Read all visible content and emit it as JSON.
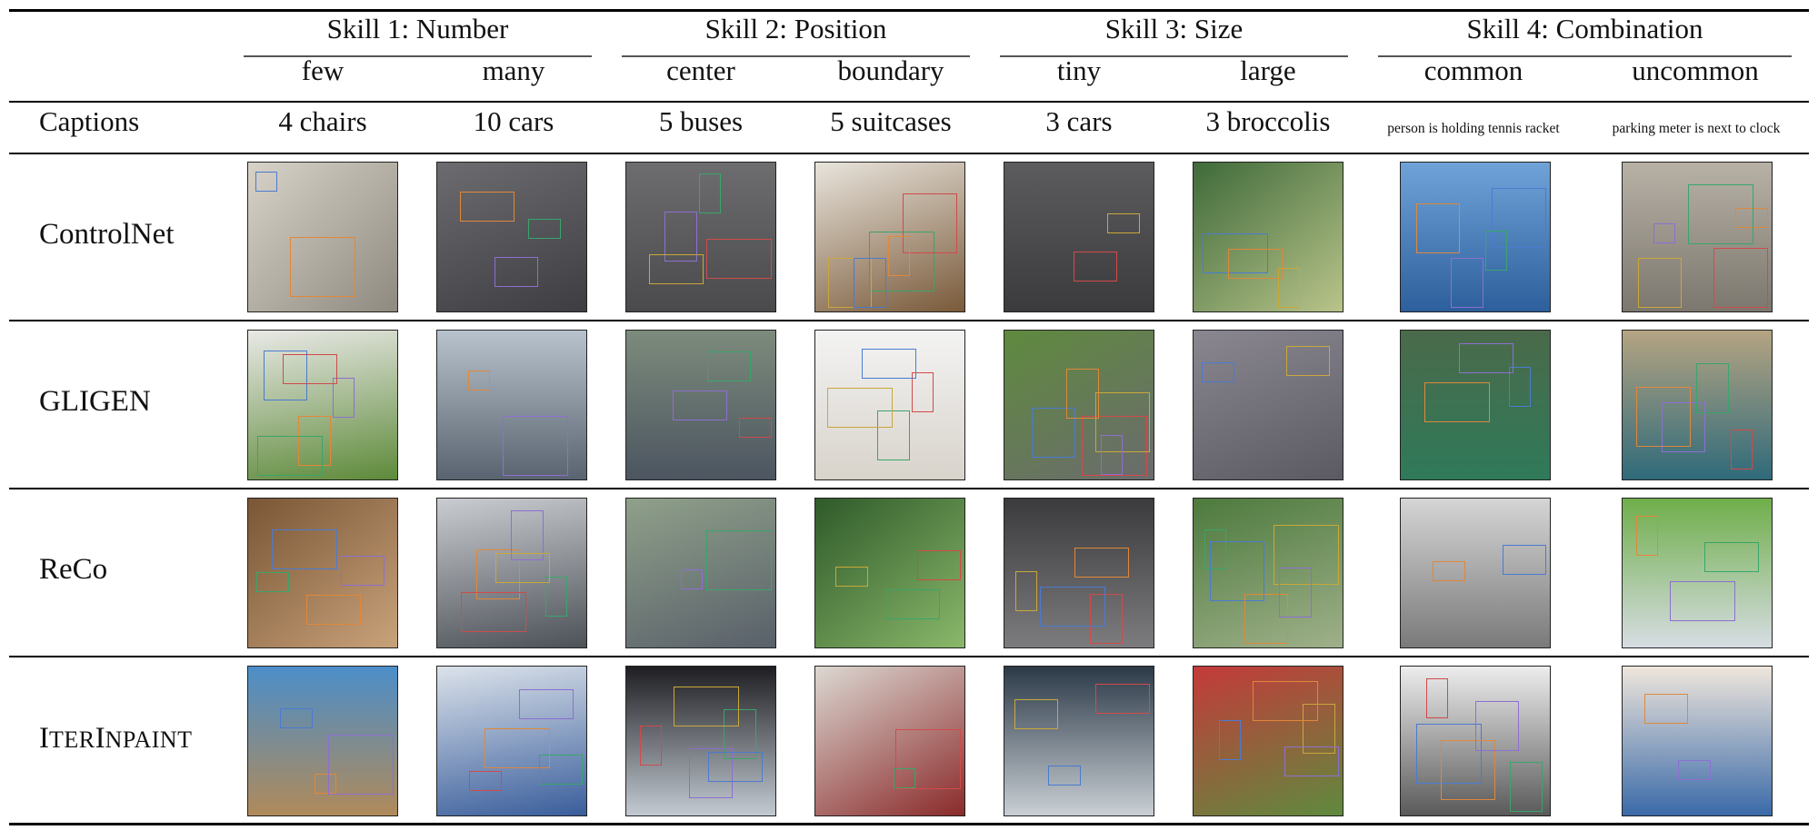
{
  "table": {
    "skills": [
      {
        "label": "Skill 1: Number"
      },
      {
        "label": "Skill 2: Position"
      },
      {
        "label": "Skill 3: Size"
      },
      {
        "label": "Skill 4: Combination"
      }
    ],
    "subheaders": [
      "few",
      "many",
      "center",
      "boundary",
      "tiny",
      "large",
      "common",
      "uncommon"
    ],
    "captions_label": "Captions",
    "captions": [
      "4 chairs",
      "10 cars",
      "5 buses",
      "5 suitcases",
      "3 cars",
      "3 broccolis",
      "person is holding tennis racket",
      "parking meter is next to clock"
    ],
    "methods": [
      {
        "name": "ControlNet"
      },
      {
        "name": "GLIGEN"
      },
      {
        "name": "ReCo"
      },
      {
        "name": "ITERINPAINT",
        "first_I": "I",
        "mid": "TER",
        "second_I": "I",
        "rest": "NPAINT"
      }
    ]
  },
  "colors": {
    "rule": "#000000",
    "box_palette": [
      "#4a7bd1",
      "#e0883a",
      "#8d6fd1",
      "#3aa56b",
      "#d14a4a",
      "#c9a83a"
    ]
  }
}
